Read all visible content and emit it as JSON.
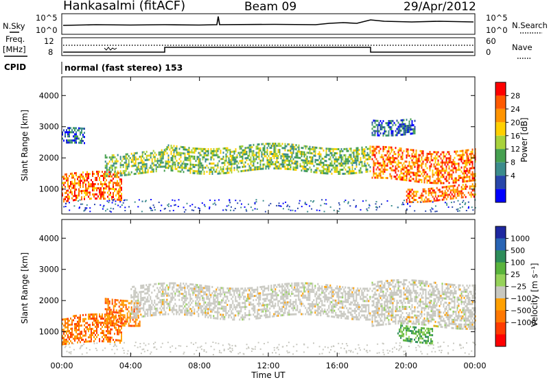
{
  "header": {
    "station": "Hankasalmi (fitACF)",
    "beam": "Beam 09",
    "date": "29/Apr/2012"
  },
  "top_panels": {
    "nsky_label": "N.Sky",
    "nsearch_label": "N.Search",
    "noise_ticks": [
      "10^5",
      "10^0"
    ],
    "freq_label_1": "Freq.",
    "freq_label_2": "[MHz]",
    "freq_ticks": [
      "12",
      "8"
    ],
    "nave_label": "Nave",
    "nave_ticks": [
      "60",
      "0"
    ],
    "cpid_label": "CPID",
    "cpid_text": "normal (fast stereo) 153"
  },
  "chart_data": [
    {
      "type": "heatmap",
      "name": "power",
      "ylabel": "Slant Range [km]",
      "xlabel": "",
      "yticks": [
        1000,
        2000,
        3000,
        4000
      ],
      "ylim": [
        200,
        4600
      ],
      "xlim_hours": [
        0,
        24
      ],
      "colorbar": {
        "label": "Power [dB]",
        "ticks": [
          "28",
          "24",
          "20",
          "16",
          "12",
          "8",
          "4"
        ],
        "colors": [
          "#ff0000",
          "#ff5a00",
          "#ff9400",
          "#ffd000",
          "#a8d23c",
          "#46a050",
          "#3c8c8c",
          "#2846aa",
          "#0000ff"
        ]
      },
      "echo_bands": [
        {
          "t": [
            0.0,
            3.5
          ],
          "range": [
            600,
            1500
          ],
          "level": "high"
        },
        {
          "t": [
            0.0,
            1.3
          ],
          "range": [
            2400,
            2900
          ],
          "level": "low"
        },
        {
          "t": [
            2.5,
            6.0
          ],
          "range": [
            1500,
            2200
          ],
          "level": "mid"
        },
        {
          "t": [
            6.0,
            17.9
          ],
          "range": [
            1600,
            2400
          ],
          "level": "mid"
        },
        {
          "t": [
            18.0,
            24.0
          ],
          "range": [
            1300,
            2300
          ],
          "level": "high"
        },
        {
          "t": [
            20.0,
            24.0
          ],
          "range": [
            650,
            1100
          ],
          "level": "high"
        },
        {
          "t": [
            18.0,
            20.5
          ],
          "range": [
            2800,
            3300
          ],
          "level": "low"
        }
      ]
    },
    {
      "type": "heatmap",
      "name": "velocity",
      "ylabel": "Slant Range [km]",
      "xlabel": "Time UT",
      "yticks": [
        1000,
        2000,
        3000,
        4000
      ],
      "ylim": [
        200,
        4600
      ],
      "xticks": [
        "00:00",
        "04:00",
        "08:00",
        "12:00",
        "16:00",
        "20:00",
        "00:00"
      ],
      "colorbar": {
        "label": "Velocity [m s⁻¹]",
        "ticks": [
          "1000",
          "500",
          "100",
          "25",
          "−25",
          "−100",
          "−500",
          "−1000"
        ],
        "colors": [
          "#1e28a0",
          "#2864b4",
          "#2d8c5a",
          "#5ab43c",
          "#96d25a",
          "#c8c8c0",
          "#ffa000",
          "#ff7800",
          "#ff3c00",
          "#ff0000"
        ]
      },
      "echo_bands": [
        {
          "t": [
            0.0,
            3.5
          ],
          "range": [
            600,
            1500
          ],
          "level": "neg"
        },
        {
          "t": [
            2.5,
            4.5
          ],
          "range": [
            1300,
            2100
          ],
          "level": "neg"
        },
        {
          "t": [
            4.0,
            17.9
          ],
          "range": [
            1500,
            2500
          ],
          "level": "zero"
        },
        {
          "t": [
            18.0,
            24.0
          ],
          "range": [
            1200,
            2600
          ],
          "level": "zero"
        },
        {
          "t": [
            19.5,
            21.5
          ],
          "range": [
            700,
            1200
          ],
          "level": "pos"
        }
      ]
    }
  ]
}
